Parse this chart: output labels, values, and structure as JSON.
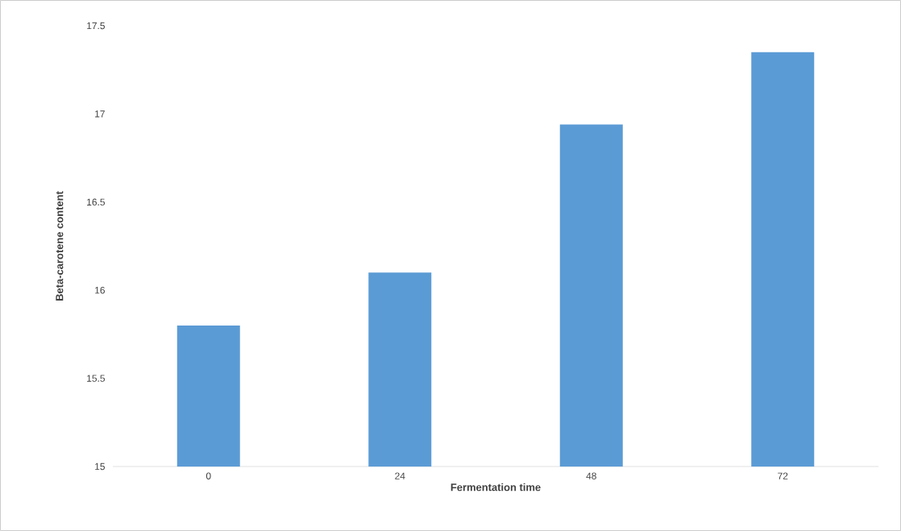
{
  "chart_data": {
    "type": "bar",
    "xlabel": "Fermentation time",
    "ylabel": "Beta-carotene content",
    "categories": [
      "0",
      "24",
      "48",
      "72"
    ],
    "values": [
      15.8,
      16.1,
      16.94,
      17.35
    ],
    "color": "#5b9bd5",
    "ylim": [
      15,
      17.5
    ],
    "yticks": [
      15,
      15.5,
      16,
      16.5,
      17,
      17.5
    ]
  }
}
